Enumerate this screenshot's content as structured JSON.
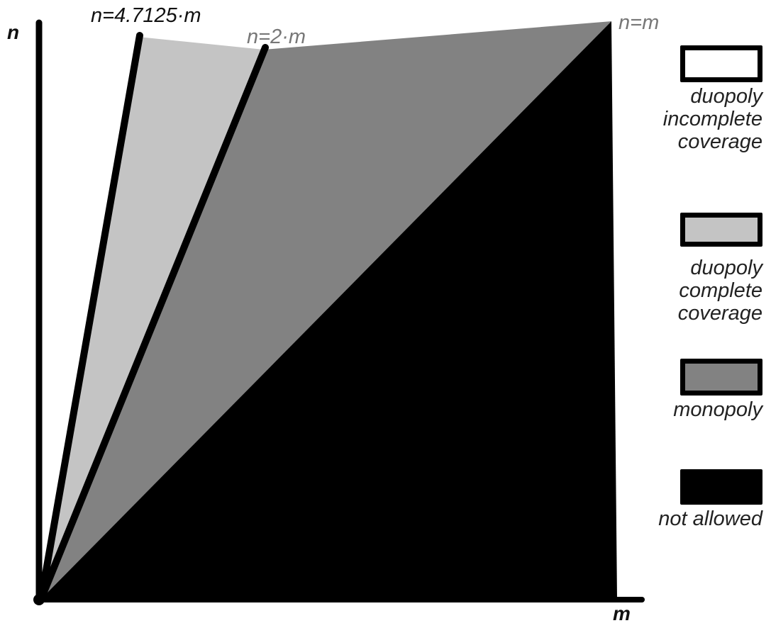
{
  "axes": {
    "y_label": "n",
    "x_label": "m"
  },
  "boundaries": [
    {
      "id": "b1",
      "label": "n=4.7125·m",
      "color": "#111111"
    },
    {
      "id": "b2",
      "label": "n=2·m",
      "color": "#777777"
    },
    {
      "id": "b3",
      "label": "n=m",
      "color": "#777777"
    }
  ],
  "regions": [
    {
      "id": "duopoly-complete",
      "color": "#c4c4c4"
    },
    {
      "id": "monopoly",
      "color": "#828282"
    },
    {
      "id": "not-allowed",
      "color": "#000000"
    }
  ],
  "legend": [
    {
      "label": "duopoly\nincomplete\ncoverage",
      "color": "#ffffff"
    },
    {
      "label": "duopoly\ncomplete\ncoverage",
      "color": "#c4c4c4"
    },
    {
      "label": "monopoly",
      "color": "#828282"
    },
    {
      "label": "not allowed",
      "color": "#000000"
    }
  ]
}
